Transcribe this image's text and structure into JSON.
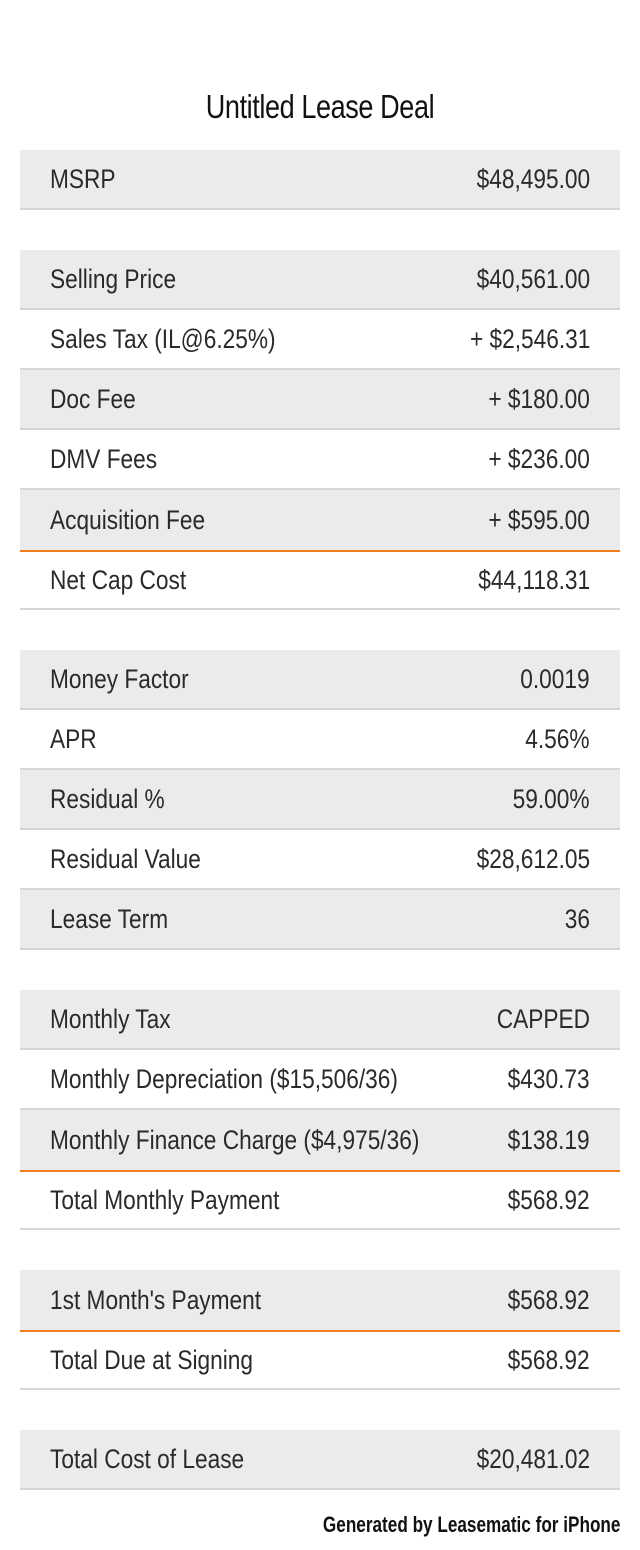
{
  "title": "Untitled Lease Deal",
  "groups": [
    {
      "rows": [
        {
          "label": "MSRP",
          "value": "$48,495.00"
        }
      ]
    },
    {
      "rows": [
        {
          "label": "Selling Price",
          "value": "$40,561.00"
        },
        {
          "label": "Sales Tax (IL@6.25%)",
          "value": "+ $2,546.31"
        },
        {
          "label": "Doc Fee",
          "value": "+ $180.00"
        },
        {
          "label": "DMV Fees",
          "value": "+ $236.00"
        },
        {
          "label": "Acquisition Fee",
          "value": "+ $595.00"
        },
        {
          "label": "Net Cap Cost",
          "value": "$44,118.31"
        }
      ]
    },
    {
      "rows": [
        {
          "label": "Money Factor",
          "value": "0.0019"
        },
        {
          "label": "APR",
          "value": "4.56%"
        },
        {
          "label": "Residual %",
          "value": "59.00%"
        },
        {
          "label": "Residual Value",
          "value": "$28,612.05"
        },
        {
          "label": "Lease Term",
          "value": "36"
        }
      ]
    },
    {
      "rows": [
        {
          "label": "Monthly Tax",
          "value": "CAPPED"
        },
        {
          "label": "Monthly Depreciation ($15,506/36)",
          "value": "$430.73"
        },
        {
          "label": "Monthly Finance Charge ($4,975/36)",
          "value": "$138.19"
        },
        {
          "label": "Total Monthly Payment",
          "value": "$568.92"
        }
      ]
    },
    {
      "rows": [
        {
          "label": "1st Month's Payment",
          "value": "$568.92"
        },
        {
          "label": "Total Due at Signing",
          "value": "$568.92"
        }
      ]
    },
    {
      "rows": [
        {
          "label": "Total Cost of Lease",
          "value": "$20,481.02"
        }
      ]
    }
  ],
  "footer": "Generated by Leasematic for iPhone",
  "colors": {
    "shaded_row": "#ebebeb",
    "separator": "#d6d6d6",
    "total_accent": "#f07d1a"
  }
}
